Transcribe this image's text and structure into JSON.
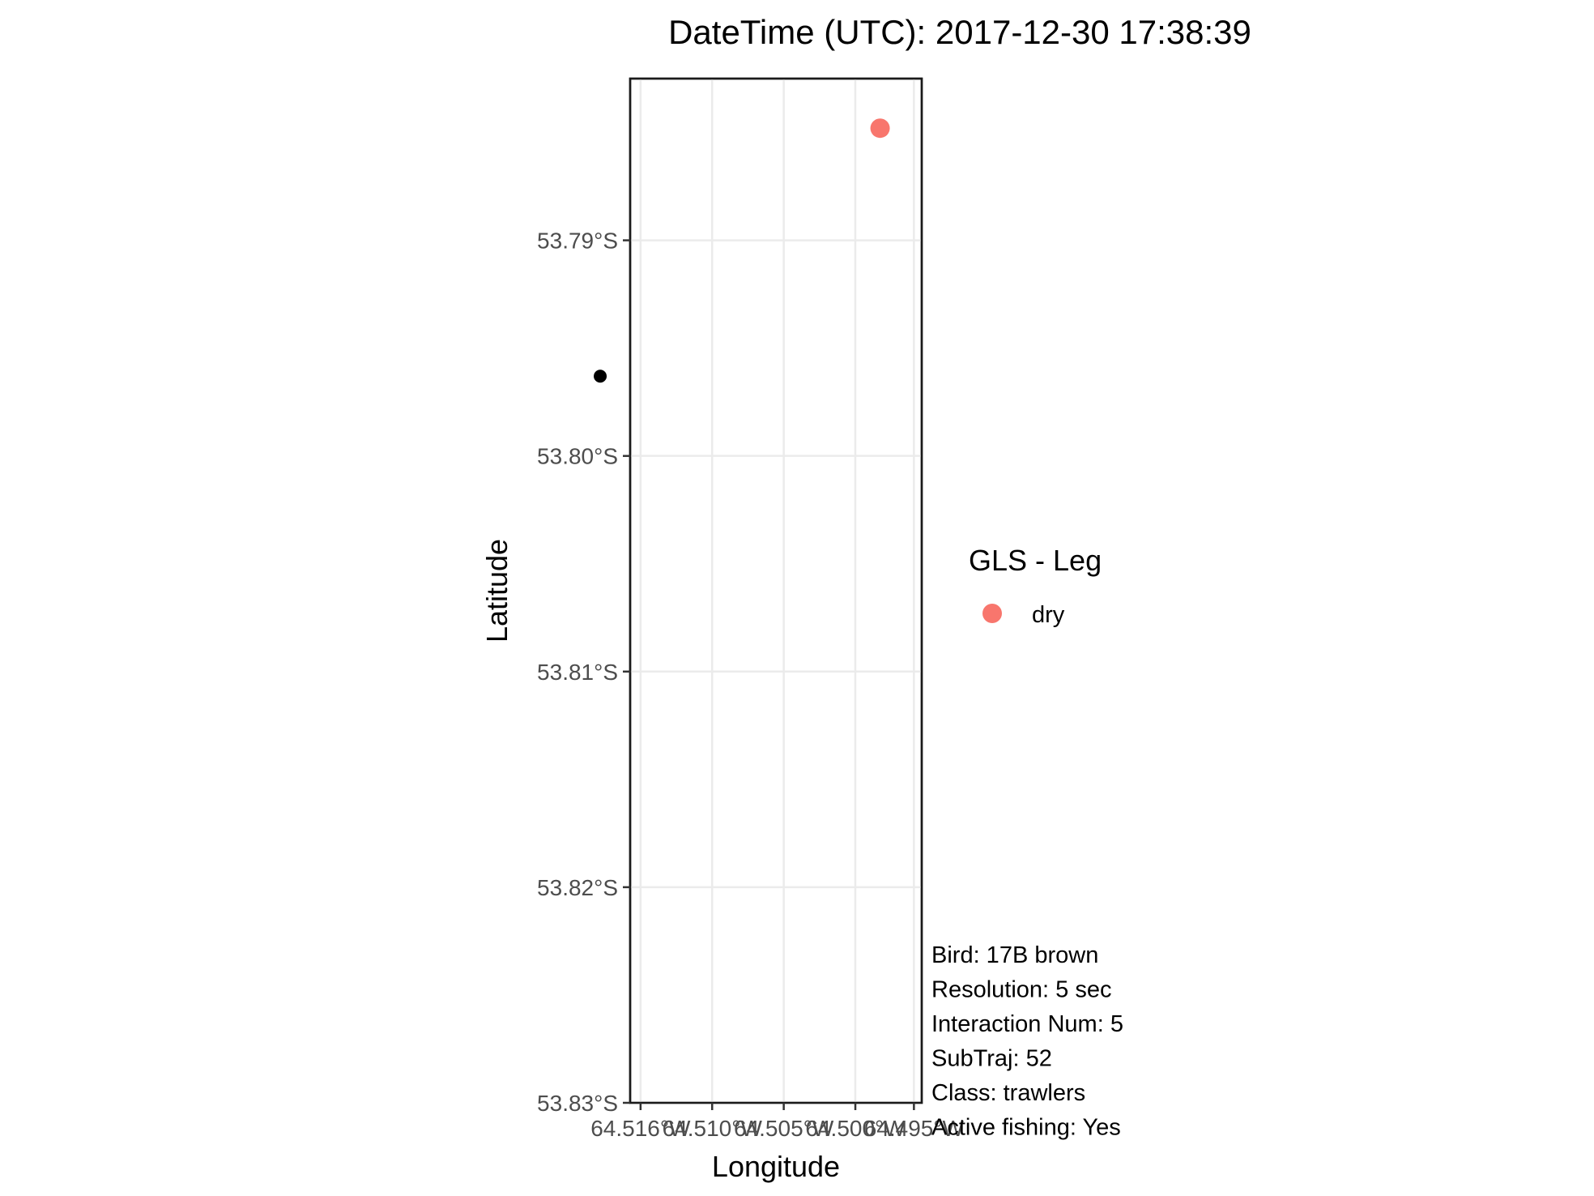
{
  "chart_data": {
    "type": "scatter",
    "title": "DateTime (UTC): 2017-12-30 17:38:39",
    "xlabel": "Longitude",
    "ylabel": "Latitude",
    "ylim": [
      -53.83,
      -53.7825
    ],
    "xlim": [
      -64.5168,
      -64.4944
    ],
    "y_ticks": [
      {
        "value": -53.79,
        "label": "53.79°S"
      },
      {
        "value": -53.8,
        "label": "53.80°S"
      },
      {
        "value": -53.81,
        "label": "53.81°S"
      },
      {
        "value": -53.82,
        "label": "53.82°S"
      },
      {
        "value": -53.83,
        "label": "53.83°S"
      }
    ],
    "x_ticks": [
      {
        "value": -64.516,
        "label": "64.516°W"
      },
      {
        "value": -64.5105,
        "label": "64.510°W"
      },
      {
        "value": -64.505,
        "label": "64.505°W"
      },
      {
        "value": -64.4995,
        "label": "64.500°W"
      },
      {
        "value": -64.495,
        "label": "64.495°W"
      }
    ],
    "series": [
      {
        "name": "dry",
        "color": "#f8766d",
        "points": [
          {
            "x": -64.4976,
            "y": -53.7848
          }
        ]
      }
    ],
    "extra_points": [
      {
        "color": "#000000",
        "x": -64.5191,
        "y": -53.7963
      }
    ],
    "legend": {
      "title": "GLS - Leg",
      "position": "right",
      "entries": [
        {
          "label": "dry",
          "color": "#f8766d"
        }
      ]
    },
    "annotations": [
      "Bird: 17B brown",
      "Resolution: 5 sec",
      "Interaction Num: 5",
      "SubTraj: 52",
      "Class: trawlers",
      "Active fishing: Yes"
    ],
    "grid": true
  }
}
